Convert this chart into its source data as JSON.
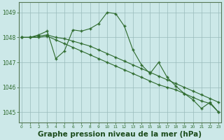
{
  "series1": {
    "x": [
      0,
      1,
      2,
      3,
      4,
      5,
      6,
      7,
      8,
      9,
      10,
      11,
      12,
      13,
      14,
      15,
      16,
      17,
      18,
      19,
      20,
      21,
      22,
      23
    ],
    "y": [
      1048.0,
      1048.0,
      1048.1,
      1048.25,
      1047.15,
      1047.45,
      1048.3,
      1048.25,
      1048.35,
      1048.55,
      1049.0,
      1048.95,
      1048.45,
      1047.5,
      1046.9,
      1046.55,
      1047.0,
      1046.4,
      1046.05,
      1045.75,
      1045.5,
      1045.15,
      1045.4,
      1045.0
    ]
  },
  "series2": {
    "x": [
      0,
      1,
      2,
      3,
      4,
      5,
      6,
      7,
      8,
      9,
      10,
      11,
      12,
      13,
      14,
      15,
      16,
      17,
      18,
      19,
      20,
      21,
      22,
      23
    ],
    "y": [
      1048.0,
      1048.0,
      1048.05,
      1048.1,
      1048.0,
      1047.95,
      1047.85,
      1047.75,
      1047.65,
      1047.5,
      1047.35,
      1047.2,
      1047.05,
      1046.9,
      1046.75,
      1046.6,
      1046.45,
      1046.3,
      1046.15,
      1046.0,
      1045.85,
      1045.7,
      1045.55,
      1045.4
    ]
  },
  "series3": {
    "x": [
      0,
      1,
      2,
      3,
      4,
      5,
      6,
      7,
      8,
      9,
      10,
      11,
      12,
      13,
      14,
      15,
      16,
      17,
      18,
      19,
      20,
      21,
      22,
      23
    ],
    "y": [
      1048.0,
      1048.0,
      1048.0,
      1048.05,
      1047.9,
      1047.75,
      1047.6,
      1047.45,
      1047.3,
      1047.15,
      1047.0,
      1046.85,
      1046.7,
      1046.55,
      1046.4,
      1046.25,
      1046.1,
      1046.0,
      1045.9,
      1045.75,
      1045.6,
      1045.45,
      1045.35,
      1045.0
    ]
  },
  "line_color": "#2d6a2d",
  "marker": "+",
  "bg_color": "#cce8e8",
  "grid_color": "#99bbbb",
  "title": "Graphe pression niveau de la mer (hPa)",
  "title_color": "#1a4a1a",
  "title_fontsize": 7.5,
  "ylim": [
    1044.6,
    1049.4
  ],
  "yticks": [
    1045,
    1046,
    1047,
    1048,
    1049
  ],
  "xticks": [
    0,
    1,
    2,
    3,
    4,
    5,
    6,
    7,
    8,
    9,
    10,
    11,
    12,
    13,
    14,
    15,
    16,
    17,
    18,
    19,
    20,
    21,
    22,
    23
  ],
  "xlim": [
    -0.3,
    23.3
  ]
}
